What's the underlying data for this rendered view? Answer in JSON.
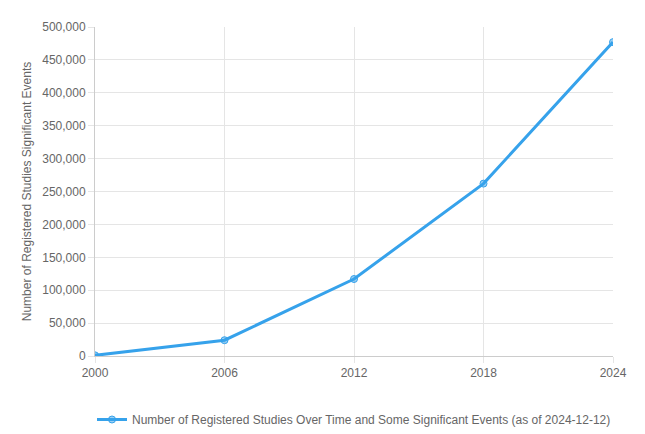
{
  "chart_data": {
    "type": "line",
    "x": [
      2000,
      2006,
      2012,
      2018,
      2024
    ],
    "series": [
      {
        "name": "Number of Registered Studies Over Time and Some Significant Events (as of 2024-12-12)",
        "color": "#36a2eb",
        "marker": "circle",
        "values": [
          1000,
          24000,
          117000,
          262000,
          477000
        ]
      }
    ],
    "xlim": [
      2000,
      2024
    ],
    "xticks": [
      2000,
      2006,
      2012,
      2018,
      2024
    ],
    "ylim": [
      0,
      500000
    ],
    "yticks": [
      0,
      {
        "value": 50000,
        "label": "50,000"
      },
      {
        "value": 100000,
        "label": "100,000"
      },
      {
        "value": 150000,
        "label": "150,000"
      },
      {
        "value": 200000,
        "label": "200,000"
      },
      {
        "value": 250000,
        "label": "250,000"
      },
      {
        "value": 300000,
        "label": "300,000"
      },
      {
        "value": 350000,
        "label": "350,000"
      },
      {
        "value": 400000,
        "label": "400,000"
      },
      {
        "value": 450000,
        "label": "450,000"
      },
      {
        "value": 500000,
        "label": "500,000"
      }
    ],
    "y_label": "Number of Registered Studies Significant Events",
    "grid": true,
    "legend": "bottom"
  }
}
